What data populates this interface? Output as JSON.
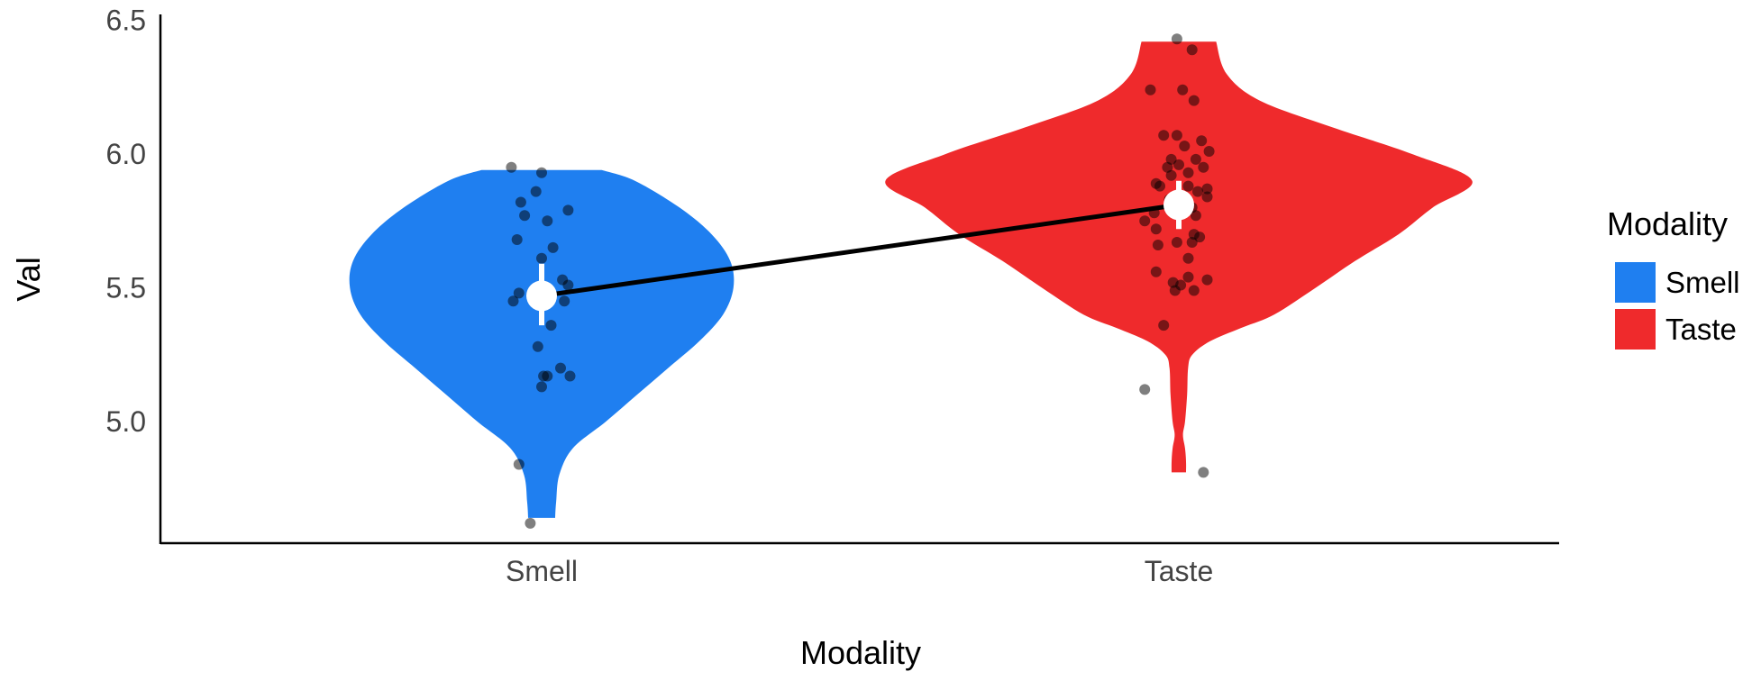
{
  "chart_data": {
    "type": "violin",
    "title": "",
    "xlabel": "Modality",
    "ylabel": "Val",
    "categories": [
      "Smell",
      "Taste"
    ],
    "y_ticks": [
      5.0,
      5.5,
      6.0,
      6.5
    ],
    "y_tick_labels": [
      "5.0",
      "5.5",
      "6.0",
      "6.5"
    ],
    "ylim": [
      4.55,
      6.52
    ],
    "grid": false,
    "legend": {
      "title": "Modality",
      "placement": "right",
      "entries": [
        {
          "label": "Smell",
          "color": "#1f7ff0"
        },
        {
          "label": "Taste",
          "color": "#ef2a2c"
        }
      ]
    },
    "series": [
      {
        "name": "Smell",
        "color": "#1f7ff0",
        "mean": 5.47,
        "ci": [
          5.36,
          5.59
        ],
        "density_profile": [
          [
            4.64,
            0.13
          ],
          [
            4.7,
            0.14
          ],
          [
            4.8,
            0.17
          ],
          [
            4.9,
            0.3
          ],
          [
            5.0,
            0.62
          ],
          [
            5.1,
            0.92
          ],
          [
            5.2,
            1.22
          ],
          [
            5.3,
            1.52
          ],
          [
            5.4,
            1.75
          ],
          [
            5.5,
            1.85
          ],
          [
            5.6,
            1.82
          ],
          [
            5.7,
            1.64
          ],
          [
            5.8,
            1.33
          ],
          [
            5.9,
            0.9
          ],
          [
            5.94,
            0.58
          ]
        ],
        "points": [
          [
            -0.16,
            5.95
          ],
          [
            0.0,
            5.93
          ],
          [
            -0.03,
            5.86
          ],
          [
            -0.11,
            5.82
          ],
          [
            0.14,
            5.79
          ],
          [
            -0.09,
            5.77
          ],
          [
            0.03,
            5.75
          ],
          [
            -0.13,
            5.68
          ],
          [
            0.06,
            5.65
          ],
          [
            0.0,
            5.61
          ],
          [
            0.14,
            5.51
          ],
          [
            0.11,
            5.53
          ],
          [
            -0.12,
            5.48
          ],
          [
            -0.15,
            5.45
          ],
          [
            0.12,
            5.45
          ],
          [
            0.05,
            5.36
          ],
          [
            -0.02,
            5.28
          ],
          [
            0.1,
            5.2
          ],
          [
            0.15,
            5.17
          ],
          [
            0.01,
            5.17
          ],
          [
            0.03,
            5.17
          ],
          [
            0.0,
            5.13
          ],
          [
            -0.12,
            4.84
          ],
          [
            -0.06,
            4.62
          ]
        ]
      },
      {
        "name": "Taste",
        "color": "#ef2a2c",
        "mean": 5.81,
        "ci": [
          5.72,
          5.9
        ],
        "density_profile": [
          [
            4.81,
            0.07
          ],
          [
            4.85,
            0.07
          ],
          [
            4.9,
            0.06
          ],
          [
            4.95,
            0.04
          ],
          [
            5.0,
            0.06
          ],
          [
            5.1,
            0.08
          ],
          [
            5.2,
            0.09
          ],
          [
            5.25,
            0.13
          ],
          [
            5.3,
            0.3
          ],
          [
            5.35,
            0.6
          ],
          [
            5.4,
            0.92
          ],
          [
            5.5,
            1.32
          ],
          [
            5.6,
            1.7
          ],
          [
            5.7,
            2.12
          ],
          [
            5.8,
            2.45
          ],
          [
            5.9,
            2.83
          ],
          [
            6.0,
            2.25
          ],
          [
            6.1,
            1.48
          ],
          [
            6.2,
            0.78
          ],
          [
            6.3,
            0.46
          ],
          [
            6.42,
            0.36
          ]
        ],
        "points": [
          [
            -0.01,
            6.43
          ],
          [
            0.07,
            6.39
          ],
          [
            -0.15,
            6.24
          ],
          [
            0.02,
            6.24
          ],
          [
            0.08,
            6.2
          ],
          [
            -0.08,
            6.07
          ],
          [
            -0.01,
            6.07
          ],
          [
            0.12,
            6.05
          ],
          [
            0.03,
            6.03
          ],
          [
            0.16,
            6.01
          ],
          [
            0.09,
            5.98
          ],
          [
            -0.04,
            5.98
          ],
          [
            0.0,
            5.96
          ],
          [
            -0.06,
            5.95
          ],
          [
            0.13,
            5.95
          ],
          [
            0.05,
            5.93
          ],
          [
            -0.04,
            5.92
          ],
          [
            -0.12,
            5.89
          ],
          [
            -0.1,
            5.88
          ],
          [
            0.05,
            5.88
          ],
          [
            0.15,
            5.87
          ],
          [
            0.1,
            5.86
          ],
          [
            0.15,
            5.84
          ],
          [
            -0.05,
            5.83
          ],
          [
            0.07,
            5.8
          ],
          [
            -0.13,
            5.78
          ],
          [
            0.09,
            5.77
          ],
          [
            -0.18,
            5.75
          ],
          [
            -0.12,
            5.72
          ],
          [
            0.08,
            5.7
          ],
          [
            0.11,
            5.69
          ],
          [
            -0.11,
            5.66
          ],
          [
            -0.01,
            5.67
          ],
          [
            0.07,
            5.67
          ],
          [
            0.05,
            5.61
          ],
          [
            -0.12,
            5.56
          ],
          [
            0.05,
            5.54
          ],
          [
            0.15,
            5.53
          ],
          [
            -0.03,
            5.52
          ],
          [
            0.01,
            5.51
          ],
          [
            -0.02,
            5.49
          ],
          [
            0.08,
            5.49
          ],
          [
            -0.08,
            5.36
          ],
          [
            -0.18,
            5.12
          ],
          [
            0.13,
            4.81
          ]
        ]
      }
    ]
  }
}
